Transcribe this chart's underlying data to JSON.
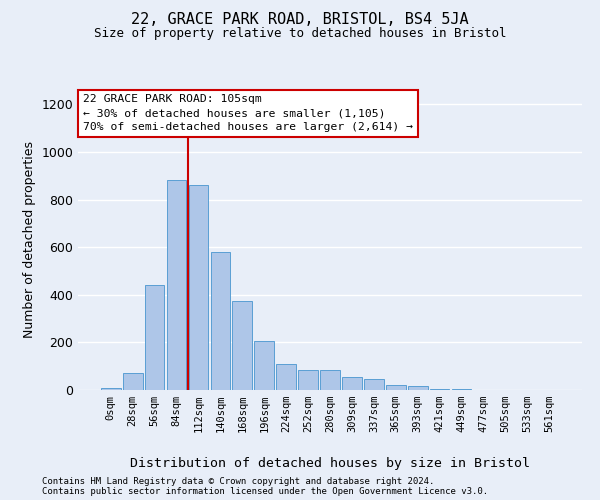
{
  "title1": "22, GRACE PARK ROAD, BRISTOL, BS4 5JA",
  "title2": "Size of property relative to detached houses in Bristol",
  "xlabel": "Distribution of detached houses by size in Bristol",
  "ylabel": "Number of detached properties",
  "categories": [
    "0sqm",
    "28sqm",
    "56sqm",
    "84sqm",
    "112sqm",
    "140sqm",
    "168sqm",
    "196sqm",
    "224sqm",
    "252sqm",
    "280sqm",
    "309sqm",
    "337sqm",
    "365sqm",
    "393sqm",
    "421sqm",
    "449sqm",
    "477sqm",
    "505sqm",
    "533sqm",
    "561sqm"
  ],
  "values": [
    10,
    70,
    440,
    880,
    860,
    580,
    375,
    205,
    110,
    85,
    85,
    55,
    45,
    22,
    15,
    5,
    3,
    2,
    1,
    1,
    0
  ],
  "bar_color": "#aec6e8",
  "bar_edgecolor": "#5a9fd4",
  "background_color": "#e8eef8",
  "grid_color": "#ffffff",
  "ylim": [
    0,
    1260
  ],
  "yticks": [
    0,
    200,
    400,
    600,
    800,
    1000,
    1200
  ],
  "red_line_x": 3.5,
  "annotation_line1": "22 GRACE PARK ROAD: 105sqm",
  "annotation_line2": "← 30% of detached houses are smaller (1,105)",
  "annotation_line3": "70% of semi-detached houses are larger (2,614) →",
  "annotation_box_color": "#ffffff",
  "annotation_border_color": "#cc0000",
  "footnote1": "Contains HM Land Registry data © Crown copyright and database right 2024.",
  "footnote2": "Contains public sector information licensed under the Open Government Licence v3.0."
}
